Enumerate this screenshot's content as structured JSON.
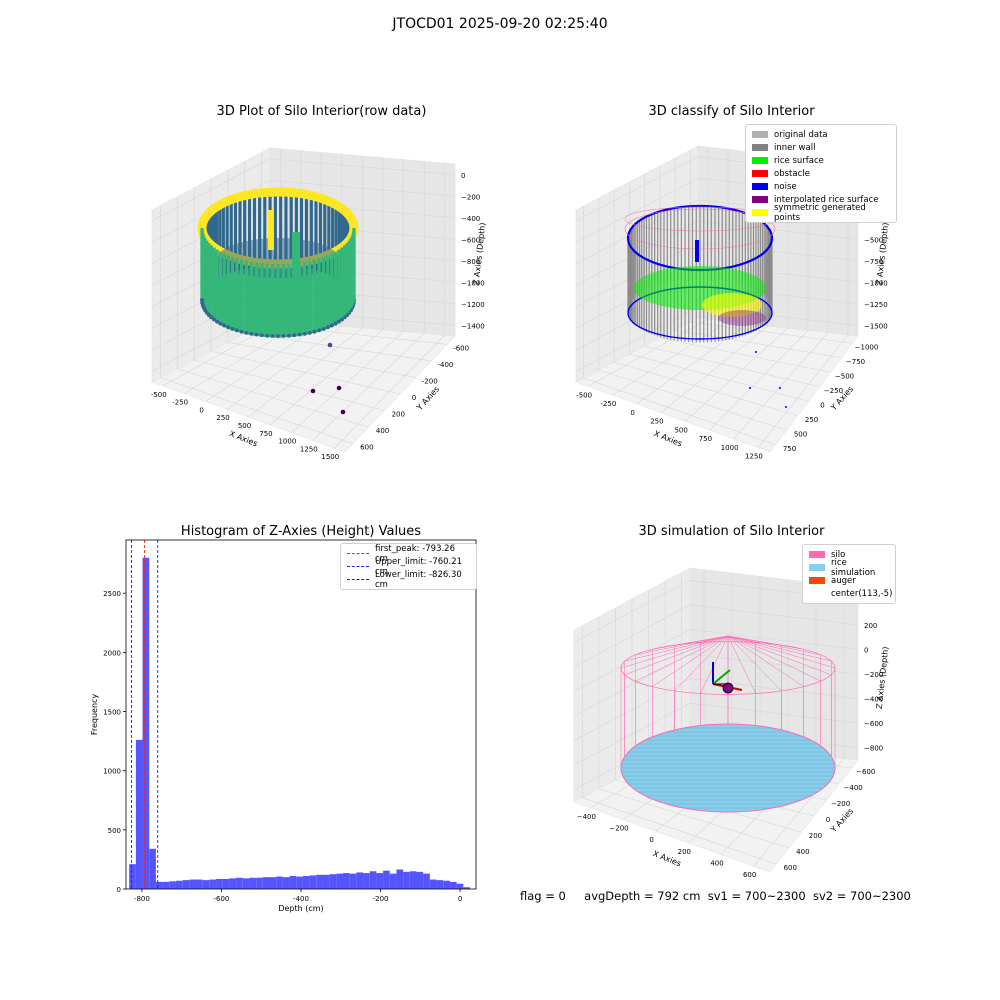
{
  "suptitle": "JTOCD01 2025-09-20 02:25:40",
  "status": {
    "flag": "flag = 0",
    "avg_depth": "avgDepth = 792 cm",
    "sv1": "sv1 = 700~2300",
    "sv2": "sv2 = 700~2300"
  },
  "chart_data": [
    {
      "id": "raw",
      "type": "scatter3d",
      "title": "3D Plot of Silo Interior(row data)",
      "xlabel": "X Axies",
      "ylabel": "Y Axies",
      "zlabel": "Z Axies (Depth)",
      "xticks": [
        "-500",
        "-250",
        "0",
        "250",
        "500",
        "750",
        "1000",
        "1250",
        "1500"
      ],
      "yticks": [
        "-600",
        "-400",
        "-200",
        "0",
        "200",
        "400",
        "600"
      ],
      "zticks": [
        "0",
        "−200",
        "−400",
        "−600",
        "−800",
        "−1000",
        "−1200",
        "−1400"
      ],
      "colormap": [
        "#440154",
        "#31688e",
        "#35b779",
        "#fde725"
      ]
    },
    {
      "id": "classify",
      "type": "scatter3d",
      "title": "3D classify of Silo Interior",
      "xlabel": "X Axies",
      "ylabel": "Y Axies",
      "zlabel": "Z Axies (Depth)",
      "xticks": [
        "-500",
        "-250",
        "0",
        "250",
        "500",
        "750",
        "1000",
        "1250"
      ],
      "yticks": [
        "−1000",
        "−750",
        "−500",
        "−250",
        "0",
        "250",
        "500",
        "750"
      ],
      "zticks": [
        "250",
        "0",
        "−250",
        "−500",
        "−750",
        "−1000",
        "−1250",
        "−1500"
      ],
      "legend": [
        {
          "label": "original data",
          "color": "#b0b0b0"
        },
        {
          "label": "inner wall",
          "color": "#808080"
        },
        {
          "label": "rice surface",
          "color": "#00ee00"
        },
        {
          "label": "obstacle",
          "color": "#ff0000"
        },
        {
          "label": "noise",
          "color": "#0000ee"
        },
        {
          "label": "interpolated rice surface",
          "color": "#800080"
        },
        {
          "label": "symmetric generated points",
          "color": "#ffff00"
        }
      ]
    },
    {
      "id": "hist",
      "type": "bar",
      "title": "Histogram of Z-Axies (Height) Values",
      "xlabel": "Depth (cm)",
      "ylabel": "Frequency",
      "xlim": [
        -840,
        40
      ],
      "ylim": [
        0,
        2950
      ],
      "xticks": [
        -800,
        -600,
        -400,
        -200,
        0
      ],
      "yticks": [
        0,
        500,
        1000,
        1500,
        2000,
        2500
      ],
      "bin_width": 16.8,
      "bin_start": -832,
      "values": [
        210,
        1260,
        2800,
        340,
        60,
        60,
        65,
        70,
        75,
        80,
        80,
        75,
        80,
        85,
        85,
        90,
        95,
        90,
        95,
        95,
        100,
        100,
        105,
        100,
        110,
        105,
        110,
        115,
        120,
        120,
        125,
        130,
        135,
        130,
        140,
        135,
        150,
        135,
        155,
        130,
        165,
        145,
        150,
        145,
        130,
        80,
        75,
        70,
        60,
        45,
        15
      ],
      "bar_color": "#5555ff",
      "vlines": [
        {
          "label": "first_peak: -793.26 cm",
          "x": -793.26,
          "color": "#ee2222"
        },
        {
          "label": "Upper_limit: -760.21 cm",
          "x": -760.21,
          "color": "#2222cc"
        },
        {
          "label": "Lower_limit: -826.30 cm",
          "x": -826.3,
          "color": "#2222cc"
        }
      ]
    },
    {
      "id": "simulation",
      "type": "surface3d",
      "title": "3D simulation of Silo Interior",
      "xlabel": "X Axies",
      "ylabel": "Y Axies",
      "zlabel": "Z Axies (Depth)",
      "xticks": [
        "−400",
        "−200",
        "0",
        "200",
        "400",
        "600"
      ],
      "yticks": [
        "−600",
        "−400",
        "−200",
        "0",
        "200",
        "400",
        "600"
      ],
      "zticks": [
        "400",
        "200",
        "0",
        "−200",
        "−400",
        "−600",
        "−800"
      ],
      "legend": [
        {
          "label": "silo",
          "color": "#ff69b4"
        },
        {
          "label": "rice simulation",
          "color": "#87ceeb"
        },
        {
          "label": "auger",
          "color": "#ff4500"
        },
        {
          "label": "center(113,-5)",
          "color": ""
        }
      ]
    }
  ]
}
